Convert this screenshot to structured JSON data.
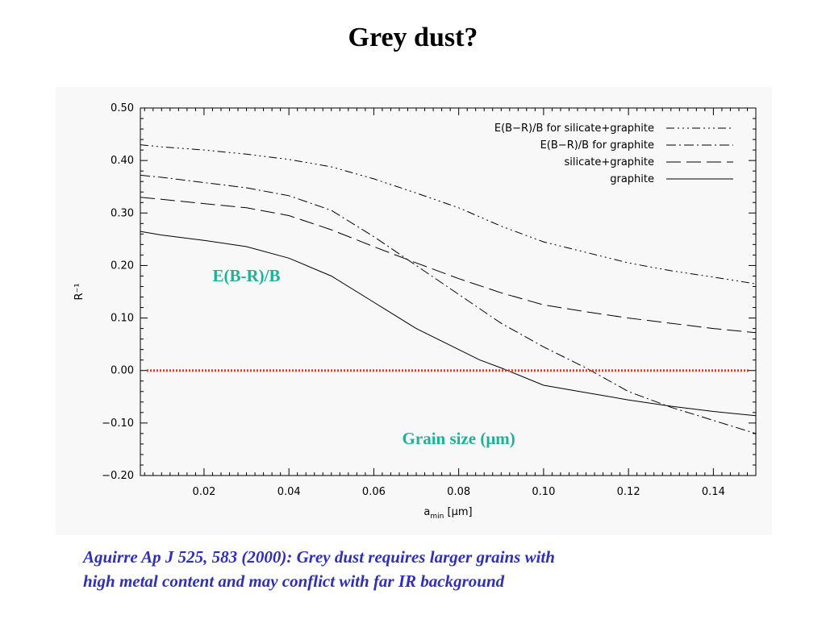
{
  "slide": {
    "title": "Grey dust?",
    "caption_line1": "Aguirre Ap J 525, 583 (2000): Grey dust requires larger grains with",
    "caption_line2": "high metal content and may conflict with far IR background"
  },
  "chart_data": {
    "type": "line",
    "xlabel_main": "a",
    "xlabel_sub": "min",
    "xlabel_unit": "[μm]",
    "ylabel": "R⁻¹",
    "xlim": [
      0.005,
      0.15
    ],
    "ylim": [
      -0.2,
      0.5
    ],
    "x_ticks": [
      0.02,
      0.04,
      0.06,
      0.08,
      0.1,
      0.12,
      0.14
    ],
    "x_tick_labels": [
      "0.02",
      "0.04",
      "0.06",
      "0.08",
      "0.10",
      "0.12",
      "0.14"
    ],
    "y_ticks": [
      -0.2,
      -0.1,
      0.0,
      0.1,
      0.2,
      0.3,
      0.4,
      0.5
    ],
    "y_tick_labels": [
      "−0.20",
      "−0.10",
      "0.00",
      "0.10",
      "0.20",
      "0.30",
      "0.40",
      "0.50"
    ],
    "legend_position": "top-right",
    "series": [
      {
        "name": "E(B−R)/B for silicate+graphite",
        "dash": "dash-dot-dot-dot",
        "color": "#000000",
        "x": [
          0.005,
          0.01,
          0.02,
          0.03,
          0.04,
          0.05,
          0.06,
          0.07,
          0.08,
          0.09,
          0.1,
          0.11,
          0.12,
          0.13,
          0.14,
          0.15
        ],
        "y": [
          0.43,
          0.426,
          0.42,
          0.412,
          0.402,
          0.388,
          0.365,
          0.338,
          0.31,
          0.275,
          0.245,
          0.225,
          0.205,
          0.19,
          0.178,
          0.165
        ]
      },
      {
        "name": "E(B−R)/B for graphite",
        "dash": "dash-dot",
        "color": "#000000",
        "x": [
          0.005,
          0.01,
          0.02,
          0.03,
          0.04,
          0.05,
          0.06,
          0.07,
          0.08,
          0.09,
          0.1,
          0.11,
          0.12,
          0.13,
          0.14,
          0.15
        ],
        "y": [
          0.372,
          0.368,
          0.358,
          0.348,
          0.333,
          0.305,
          0.255,
          0.2,
          0.145,
          0.09,
          0.045,
          0.005,
          -0.04,
          -0.07,
          -0.095,
          -0.12
        ]
      },
      {
        "name": "silicate+graphite",
        "dash": "long-dash",
        "color": "#000000",
        "x": [
          0.005,
          0.01,
          0.02,
          0.03,
          0.04,
          0.05,
          0.06,
          0.07,
          0.08,
          0.09,
          0.1,
          0.11,
          0.12,
          0.13,
          0.14,
          0.15
        ],
        "y": [
          0.33,
          0.326,
          0.318,
          0.31,
          0.295,
          0.268,
          0.236,
          0.205,
          0.175,
          0.148,
          0.125,
          0.112,
          0.1,
          0.09,
          0.08,
          0.072
        ]
      },
      {
        "name": "graphite",
        "dash": "solid",
        "color": "#000000",
        "x": [
          0.005,
          0.01,
          0.02,
          0.03,
          0.04,
          0.05,
          0.06,
          0.07,
          0.08,
          0.085,
          0.09,
          0.1,
          0.11,
          0.12,
          0.13,
          0.14,
          0.15
        ],
        "y": [
          0.265,
          0.258,
          0.248,
          0.236,
          0.214,
          0.18,
          0.13,
          0.08,
          0.04,
          0.02,
          0.005,
          -0.028,
          -0.042,
          -0.056,
          -0.068,
          -0.078,
          -0.086
        ]
      }
    ],
    "reference_line": {
      "y": 0.0,
      "color": "#e63a10",
      "style": "dotted"
    },
    "annotations": [
      {
        "text": "E(B-R)/B",
        "x": 0.022,
        "y": 0.17,
        "color": "#1fb098"
      },
      {
        "text": "Grain size (μm)",
        "x": 0.08,
        "y": -0.14,
        "color": "#1fb098"
      }
    ]
  }
}
